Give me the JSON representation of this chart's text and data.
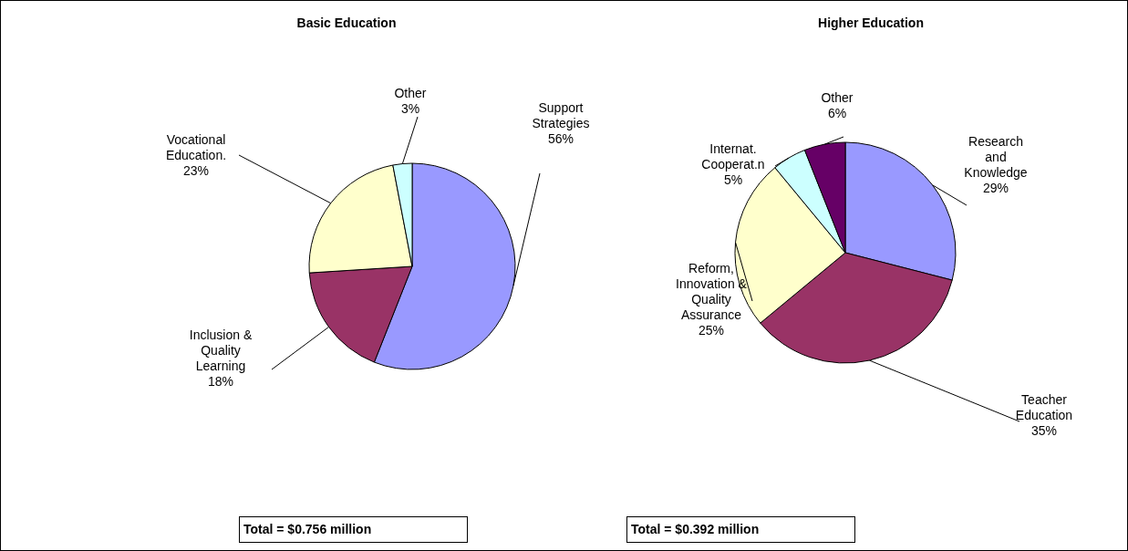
{
  "chart_data": [
    {
      "type": "pie",
      "title": "Basic Education",
      "categories": [
        "Support Strategies",
        "Inclusion & Quality Learning",
        "Vocational Education.",
        "Other"
      ],
      "values": [
        56,
        18,
        23,
        3
      ],
      "colors": [
        "#9999ff",
        "#993366",
        "#ffffcc",
        "#ccffff"
      ],
      "value_labels": [
        "56%",
        "18%",
        "23%",
        "3%"
      ],
      "annotations": [
        "Total = $0.756 million"
      ]
    },
    {
      "type": "pie",
      "title": "Higher Education",
      "categories": [
        "Research and Knowledge",
        "Teacher Education",
        "Reform, Innovation & Quality Assurance",
        "Internat. Cooperat.n",
        "Other"
      ],
      "values": [
        29,
        35,
        25,
        5,
        6
      ],
      "colors": [
        "#9999ff",
        "#993366",
        "#ffffcc",
        "#ccffff",
        "#660066"
      ],
      "value_labels": [
        "29%",
        "35%",
        "25%",
        "5%",
        "6%"
      ],
      "annotations": [
        "Total = $0.392 million"
      ]
    }
  ]
}
